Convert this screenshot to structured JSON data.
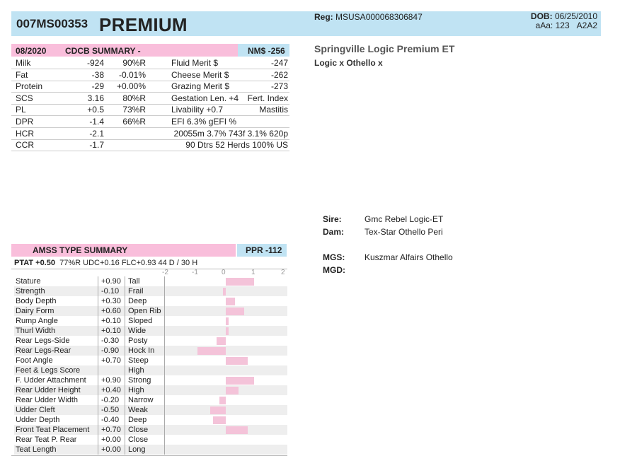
{
  "header": {
    "id": "007MS00353",
    "name": "PREMIUM",
    "reg_label": "Reg:",
    "reg_value": "MSUSA000068306847",
    "dob_label": "DOB:",
    "dob_value": "06/25/2010",
    "aaa": "aAa: 123",
    "a2a2": "A2A2"
  },
  "summary": {
    "date": "08/2020",
    "title": "CDCB SUMMARY -",
    "nm": "NM$ -256"
  },
  "rows": [
    {
      "a": "Milk",
      "b": "-924",
      "c": "90%R",
      "d": "Fluid Merit $",
      "e": "-247"
    },
    {
      "a": "Fat",
      "b": "-38",
      "c": "-0.01%",
      "d": "Cheese Merit $",
      "e": "-262"
    },
    {
      "a": "Protein",
      "b": "-29",
      "c": "+0.00%",
      "d": "Grazing Merit $",
      "e": "-273"
    },
    {
      "a": "SCS",
      "b": "3.16",
      "c": "80%R",
      "d": "Gestation Len. +4",
      "e": "Fert. Index"
    },
    {
      "a": "PL",
      "b": "+0.5",
      "c": "73%R",
      "d": "Livability  +0.7",
      "e": "Mastitis"
    },
    {
      "a": "DPR",
      "b": "-1.4",
      "c": "66%R",
      "d": "EFI  6.3%   gEFI  %",
      "e": ""
    },
    {
      "a": "HCR",
      "b": "-2.1",
      "c": "",
      "d": "",
      "e": "20055m  3.7%  743f  3.1%  620p"
    },
    {
      "a": "CCR",
      "b": "-1.7",
      "c": "",
      "d": "",
      "e": "90 Dtrs  52 Herds  100% US"
    }
  ],
  "animal": {
    "title": "Springville Logic Premium ET",
    "subtitle": "Logic x Othello x"
  },
  "pedigree": {
    "sire_label": "Sire:",
    "sire": "Gmc Rebel Logic-ET",
    "dam_label": "Dam:",
    "dam": "Tex-Star Othello Peri",
    "mgs_label": "MGS:",
    "mgs": "Kuszmar Alfairs Othello",
    "mgd_label": "MGD:",
    "mgd": ""
  },
  "type": {
    "title": "AMSS TYPE SUMMARY",
    "ppr": "PPR -112",
    "ptat_label": "PTAT +0.50",
    "ptat_rest": "77%R  UDC+0.16  FLC+0.93    44 D /  30 H",
    "axis": [
      "-2",
      "-1",
      "0",
      "1",
      "2"
    ]
  },
  "traits": [
    {
      "name": "Stature",
      "val": "+0.90",
      "desc": "Tall",
      "v": 0.9
    },
    {
      "name": "Strength",
      "val": "-0.10",
      "desc": "Frail",
      "v": -0.1
    },
    {
      "name": "Body Depth",
      "val": "+0.30",
      "desc": "Deep",
      "v": 0.3
    },
    {
      "name": "Dairy Form",
      "val": "+0.60",
      "desc": "Open Rib",
      "v": 0.6
    },
    {
      "name": "Rump Angle",
      "val": "+0.10",
      "desc": "Sloped",
      "v": 0.1
    },
    {
      "name": "Thurl Width",
      "val": "+0.10",
      "desc": "Wide",
      "v": 0.1
    },
    {
      "name": "Rear Legs-Side",
      "val": "-0.30",
      "desc": "Posty",
      "v": -0.3
    },
    {
      "name": "Rear Legs-Rear",
      "val": "-0.90",
      "desc": "Hock In",
      "v": -0.9
    },
    {
      "name": "Foot Angle",
      "val": "+0.70",
      "desc": "Steep",
      "v": 0.7
    },
    {
      "name": "Feet & Legs Score",
      "val": "",
      "desc": "High",
      "v": 0
    },
    {
      "name": "F. Udder Attachment",
      "val": "+0.90",
      "desc": "Strong",
      "v": 0.9
    },
    {
      "name": "Rear Udder Height",
      "val": "+0.40",
      "desc": "High",
      "v": 0.4
    },
    {
      "name": "Rear Udder Width",
      "val": "-0.20",
      "desc": "Narrow",
      "v": -0.2
    },
    {
      "name": "Udder Cleft",
      "val": "-0.50",
      "desc": "Weak",
      "v": -0.5
    },
    {
      "name": "Udder Depth",
      "val": "-0.40",
      "desc": "Deep",
      "v": -0.4
    },
    {
      "name": "Front Teat Placement",
      "val": "+0.70",
      "desc": "Close",
      "v": 0.7
    },
    {
      "name": "Rear Teat P. Rear",
      "val": "+0.00",
      "desc": "Close",
      "v": 0.0
    },
    {
      "name": "Teat Length",
      "val": "+0.00",
      "desc": "Long",
      "v": 0.0
    }
  ]
}
